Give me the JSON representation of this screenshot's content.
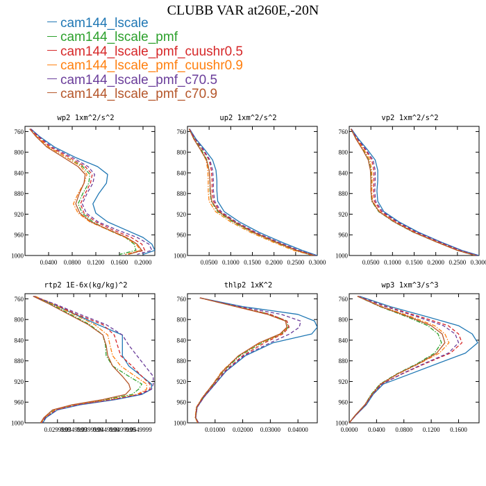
{
  "title": "CLUBB VAR at260E,-20N",
  "series_styles": [
    {
      "name": "cam144_lscale",
      "color": "#1f77b4",
      "dash": "solid"
    },
    {
      "name": "cam144_lscale_pmf",
      "color": "#2ca02c",
      "dash": "dashdot"
    },
    {
      "name": "cam144_lscale_pmf_cuushr0.5",
      "color": "#d62728",
      "dash": "dashed"
    },
    {
      "name": "cam144_lscale_pmf_cuushr0.9",
      "color": "#ff7f0e",
      "dash": "dashdot"
    },
    {
      "name": "cam144_lscale_pmf_c70.5",
      "color": "#6a3d9a",
      "dash": "dashed"
    },
    {
      "name": "cam144_lscale_pmf_c70.9",
      "color": "#b5562a",
      "dash": "solid"
    }
  ],
  "chart_data": [
    {
      "type": "line",
      "title": "wp2  1xm^2/s^2",
      "xlim": [
        0.0,
        0.22
      ],
      "ylim": [
        1000,
        750
      ],
      "y_reversed": true,
      "xticks": [
        0.04,
        0.08,
        0.12,
        0.16,
        0.2
      ],
      "xticklabels": [
        "0.0400",
        "0.0800",
        "0.1200",
        "0.1600",
        "0.2000"
      ],
      "yticks": [
        760,
        800,
        840,
        880,
        920,
        960,
        1000
      ],
      "yticklabels": [
        "760",
        "800",
        "840",
        "880",
        "920",
        "960",
        "1000"
      ],
      "y": [
        755,
        770,
        790,
        810,
        828,
        843,
        860,
        880,
        900,
        918,
        935,
        950,
        965,
        978,
        990,
        998
      ],
      "series": [
        {
          "values": [
            0.01,
            0.025,
            0.05,
            0.085,
            0.123,
            0.14,
            0.138,
            0.125,
            0.115,
            0.12,
            0.14,
            0.17,
            0.2,
            0.215,
            0.22,
            0.2
          ]
        },
        {
          "values": [
            0.008,
            0.02,
            0.04,
            0.07,
            0.098,
            0.11,
            0.108,
            0.098,
            0.09,
            0.097,
            0.115,
            0.14,
            0.17,
            0.185,
            0.188,
            0.16
          ]
        },
        {
          "values": [
            0.009,
            0.022,
            0.043,
            0.075,
            0.102,
            0.114,
            0.111,
            0.102,
            0.094,
            0.1,
            0.12,
            0.148,
            0.18,
            0.198,
            0.203,
            0.17
          ]
        },
        {
          "values": [
            0.008,
            0.02,
            0.04,
            0.07,
            0.095,
            0.105,
            0.1,
            0.09,
            0.082,
            0.09,
            0.11,
            0.14,
            0.17,
            0.188,
            0.196,
            0.17
          ]
        },
        {
          "values": [
            0.01,
            0.024,
            0.046,
            0.08,
            0.107,
            0.118,
            0.115,
            0.105,
            0.097,
            0.104,
            0.124,
            0.155,
            0.19,
            0.21,
            0.215,
            0.19
          ]
        },
        {
          "values": [
            0.008,
            0.019,
            0.037,
            0.065,
            0.09,
            0.102,
            0.1,
            0.092,
            0.086,
            0.093,
            0.112,
            0.142,
            0.172,
            0.19,
            0.198,
            0.175
          ]
        }
      ]
    },
    {
      "type": "line",
      "title": "up2  1xm^2/s^2",
      "xlim": [
        0.0,
        0.3
      ],
      "ylim": [
        1000,
        750
      ],
      "y_reversed": true,
      "xticks": [
        0.05,
        0.1,
        0.15,
        0.2,
        0.25,
        0.3
      ],
      "xticklabels": [
        "0.0500",
        "0.1000",
        "0.1500",
        "0.2000",
        "0.2500",
        "0.3000"
      ],
      "yticks": [
        760,
        800,
        840,
        880,
        920,
        960,
        1000
      ],
      "yticklabels": [
        "760",
        "800",
        "840",
        "880",
        "920",
        "960",
        "1000"
      ],
      "y": [
        755,
        775,
        795,
        815,
        835,
        855,
        875,
        895,
        915,
        935,
        955,
        975,
        990,
        1000
      ],
      "series": [
        {
          "values": [
            0.005,
            0.02,
            0.04,
            0.058,
            0.066,
            0.068,
            0.068,
            0.07,
            0.085,
            0.12,
            0.165,
            0.22,
            0.265,
            0.3
          ]
        },
        {
          "values": [
            0.004,
            0.016,
            0.032,
            0.045,
            0.05,
            0.052,
            0.052,
            0.055,
            0.07,
            0.105,
            0.15,
            0.205,
            0.25,
            0.29
          ]
        },
        {
          "values": [
            0.004,
            0.018,
            0.035,
            0.05,
            0.055,
            0.057,
            0.057,
            0.06,
            0.075,
            0.11,
            0.155,
            0.21,
            0.255,
            0.295
          ]
        },
        {
          "values": [
            0.004,
            0.015,
            0.03,
            0.043,
            0.047,
            0.048,
            0.048,
            0.05,
            0.065,
            0.1,
            0.145,
            0.2,
            0.245,
            0.29
          ]
        },
        {
          "values": [
            0.005,
            0.019,
            0.037,
            0.052,
            0.058,
            0.06,
            0.06,
            0.063,
            0.078,
            0.113,
            0.158,
            0.213,
            0.258,
            0.297
          ]
        },
        {
          "values": [
            0.004,
            0.015,
            0.03,
            0.044,
            0.05,
            0.052,
            0.053,
            0.056,
            0.072,
            0.108,
            0.152,
            0.207,
            0.252,
            0.293
          ]
        }
      ]
    },
    {
      "type": "line",
      "title": "vp2  1xm^2/s^2",
      "xlim": [
        0.0,
        0.3
      ],
      "ylim": [
        1000,
        750
      ],
      "y_reversed": true,
      "xticks": [
        0.05,
        0.1,
        0.15,
        0.2,
        0.25,
        0.3
      ],
      "xticklabels": [
        "0.0500",
        "0.1000",
        "0.1500",
        "0.2000",
        "0.2500",
        "0.3000"
      ],
      "yticks": [
        760,
        800,
        840,
        880,
        920,
        960,
        1000
      ],
      "yticklabels": [
        "760",
        "800",
        "840",
        "880",
        "920",
        "960",
        "1000"
      ],
      "y": [
        755,
        775,
        795,
        815,
        835,
        855,
        875,
        895,
        915,
        935,
        955,
        975,
        990,
        1000
      ],
      "series": [
        {
          "values": [
            0.005,
            0.022,
            0.042,
            0.06,
            0.066,
            0.066,
            0.064,
            0.066,
            0.08,
            0.115,
            0.16,
            0.215,
            0.26,
            0.3
          ]
        },
        {
          "values": [
            0.004,
            0.016,
            0.032,
            0.045,
            0.05,
            0.051,
            0.05,
            0.052,
            0.068,
            0.103,
            0.148,
            0.205,
            0.25,
            0.29
          ]
        },
        {
          "values": [
            0.004,
            0.019,
            0.037,
            0.052,
            0.057,
            0.057,
            0.056,
            0.058,
            0.074,
            0.109,
            0.154,
            0.21,
            0.255,
            0.295
          ]
        },
        {
          "values": [
            0.004,
            0.017,
            0.034,
            0.048,
            0.052,
            0.053,
            0.052,
            0.054,
            0.07,
            0.105,
            0.15,
            0.206,
            0.251,
            0.292
          ]
        },
        {
          "values": [
            0.005,
            0.02,
            0.039,
            0.055,
            0.06,
            0.06,
            0.059,
            0.061,
            0.077,
            0.112,
            0.157,
            0.213,
            0.258,
            0.297
          ]
        },
        {
          "values": [
            0.004,
            0.016,
            0.031,
            0.044,
            0.049,
            0.05,
            0.05,
            0.053,
            0.069,
            0.104,
            0.149,
            0.205,
            0.25,
            0.291
          ]
        }
      ]
    },
    {
      "type": "line",
      "title": "rtp2  1E-6x(kg/kg)^2",
      "xlim": [
        0.02,
        0.06
      ],
      "ylim": [
        1000,
        750
      ],
      "y_reversed": true,
      "xticks": [
        0.03,
        0.035,
        0.04,
        0.045,
        0.05,
        0.055
      ],
      "xticklabels": [
        "0.0299999",
        "0.0349999",
        "0.0399999",
        "0.0449999",
        "0.0499999",
        "0.0549999"
      ],
      "yticks": [
        760,
        800,
        840,
        880,
        920,
        960,
        1000
      ],
      "yticklabels": [
        "760",
        "800",
        "840",
        "880",
        "920",
        "960",
        "1000"
      ],
      "y": [
        755,
        770,
        790,
        810,
        830,
        850,
        870,
        890,
        910,
        925,
        935,
        945,
        955,
        965,
        975,
        990,
        1000
      ],
      "series": [
        {
          "values": [
            0.0225,
            0.0285,
            0.0355,
            0.0425,
            0.05,
            0.05,
            0.05,
            0.052,
            0.056,
            0.059,
            0.059,
            0.056,
            0.048,
            0.037,
            0.03,
            0.0265,
            0.0255
          ]
        },
        {
          "values": [
            0.023,
            0.028,
            0.034,
            0.04,
            0.044,
            0.0448,
            0.045,
            0.047,
            0.052,
            0.056,
            0.055,
            0.053,
            0.045,
            0.035,
            0.029,
            0.026,
            0.025
          ]
        },
        {
          "values": [
            0.0228,
            0.029,
            0.036,
            0.044,
            0.0475,
            0.0485,
            0.0495,
            0.053,
            0.056,
            0.0585,
            0.0585,
            0.055,
            0.047,
            0.036,
            0.0295,
            0.0262,
            0.0252
          ]
        },
        {
          "values": [
            0.0232,
            0.0285,
            0.035,
            0.0415,
            0.0455,
            0.0462,
            0.047,
            0.0495,
            0.054,
            0.0575,
            0.0575,
            0.0545,
            0.046,
            0.0355,
            0.0292,
            0.026,
            0.025
          ]
        },
        {
          "values": [
            0.0226,
            0.0292,
            0.037,
            0.045,
            0.05,
            0.052,
            0.0545,
            0.057,
            0.0595,
            0.0595,
            0.059,
            0.0555,
            0.0475,
            0.0365,
            0.0298,
            0.0263,
            0.0253
          ]
        },
        {
          "values": [
            0.0225,
            0.0275,
            0.0335,
            0.0395,
            0.044,
            0.045,
            0.0455,
            0.047,
            0.05,
            0.052,
            0.0525,
            0.051,
            0.044,
            0.0345,
            0.0285,
            0.0258,
            0.0248
          ]
        }
      ]
    },
    {
      "type": "line",
      "title": "thlp2  1xK^2",
      "xlim": [
        0.0,
        0.047
      ],
      "ylim": [
        1000,
        750
      ],
      "y_reversed": true,
      "xticks": [
        0.01,
        0.02,
        0.03,
        0.04
      ],
      "xticklabels": [
        "0.01000",
        "0.02000",
        "0.03000",
        "0.04000"
      ],
      "yticks": [
        760,
        800,
        840,
        880,
        920,
        960,
        1000
      ],
      "yticklabels": [
        "760",
        "800",
        "840",
        "880",
        "920",
        "960",
        "1000"
      ],
      "y": [
        758,
        775,
        790,
        803,
        815,
        828,
        845,
        870,
        900,
        925,
        950,
        970,
        990,
        1000
      ],
      "series": [
        {
          "values": [
            0.0045,
            0.02,
            0.04,
            0.046,
            0.047,
            0.045,
            0.031,
            0.021,
            0.014,
            0.01,
            0.006,
            0.0035,
            0.003,
            0.004
          ]
        },
        {
          "values": [
            0.0045,
            0.018,
            0.03,
            0.036,
            0.0365,
            0.034,
            0.027,
            0.019,
            0.013,
            0.0095,
            0.0058,
            0.0034,
            0.0029,
            0.0038
          ]
        },
        {
          "values": [
            0.0045,
            0.018,
            0.03,
            0.036,
            0.0368,
            0.0345,
            0.028,
            0.02,
            0.0135,
            0.0098,
            0.006,
            0.0035,
            0.003,
            0.004
          ]
        },
        {
          "values": [
            0.0045,
            0.0175,
            0.029,
            0.0355,
            0.0362,
            0.034,
            0.0265,
            0.0185,
            0.0125,
            0.0092,
            0.0055,
            0.0032,
            0.0028,
            0.0037
          ]
        },
        {
          "values": [
            0.0045,
            0.019,
            0.034,
            0.041,
            0.0405,
            0.037,
            0.03,
            0.0205,
            0.0138,
            0.01,
            0.006,
            0.0035,
            0.003,
            0.004
          ]
        },
        {
          "values": [
            0.0045,
            0.0175,
            0.029,
            0.0355,
            0.036,
            0.0335,
            0.026,
            0.0185,
            0.0128,
            0.0093,
            0.0056,
            0.0033,
            0.0029,
            0.0038
          ]
        }
      ]
    },
    {
      "type": "line",
      "title": "wp3  1xm^3/s^3",
      "xlim": [
        0.0,
        0.19
      ],
      "ylim": [
        1000,
        750
      ],
      "y_reversed": true,
      "xticks": [
        0.0,
        0.04,
        0.08,
        0.12,
        0.16
      ],
      "xticklabels": [
        "0.0000",
        "0.0400",
        "0.0800",
        "0.1200",
        "0.1600"
      ],
      "yticks": [
        760,
        800,
        840,
        880,
        920,
        960,
        1000
      ],
      "yticklabels": [
        "760",
        "800",
        "840",
        "880",
        "920",
        "960",
        "1000"
      ],
      "y": [
        755,
        775,
        795,
        812,
        828,
        845,
        865,
        885,
        905,
        925,
        945,
        965,
        985,
        1000
      ],
      "series": [
        {
          "values": [
            0.015,
            0.06,
            0.115,
            0.16,
            0.18,
            0.188,
            0.17,
            0.13,
            0.09,
            0.05,
            0.035,
            0.025,
            0.01,
            0.0
          ]
        },
        {
          "values": [
            0.012,
            0.045,
            0.085,
            0.115,
            0.13,
            0.135,
            0.125,
            0.1,
            0.07,
            0.045,
            0.032,
            0.023,
            0.009,
            0.0
          ]
        },
        {
          "values": [
            0.013,
            0.055,
            0.105,
            0.145,
            0.16,
            0.165,
            0.148,
            0.112,
            0.078,
            0.048,
            0.034,
            0.024,
            0.01,
            0.0
          ]
        },
        {
          "values": [
            0.012,
            0.048,
            0.092,
            0.125,
            0.14,
            0.146,
            0.132,
            0.103,
            0.072,
            0.046,
            0.033,
            0.023,
            0.009,
            0.0
          ]
        },
        {
          "values": [
            0.013,
            0.053,
            0.1,
            0.138,
            0.155,
            0.16,
            0.145,
            0.11,
            0.077,
            0.048,
            0.034,
            0.024,
            0.01,
            0.0
          ]
        },
        {
          "values": [
            0.012,
            0.046,
            0.088,
            0.12,
            0.136,
            0.14,
            0.128,
            0.102,
            0.071,
            0.046,
            0.033,
            0.023,
            0.009,
            0.0
          ]
        }
      ]
    }
  ]
}
